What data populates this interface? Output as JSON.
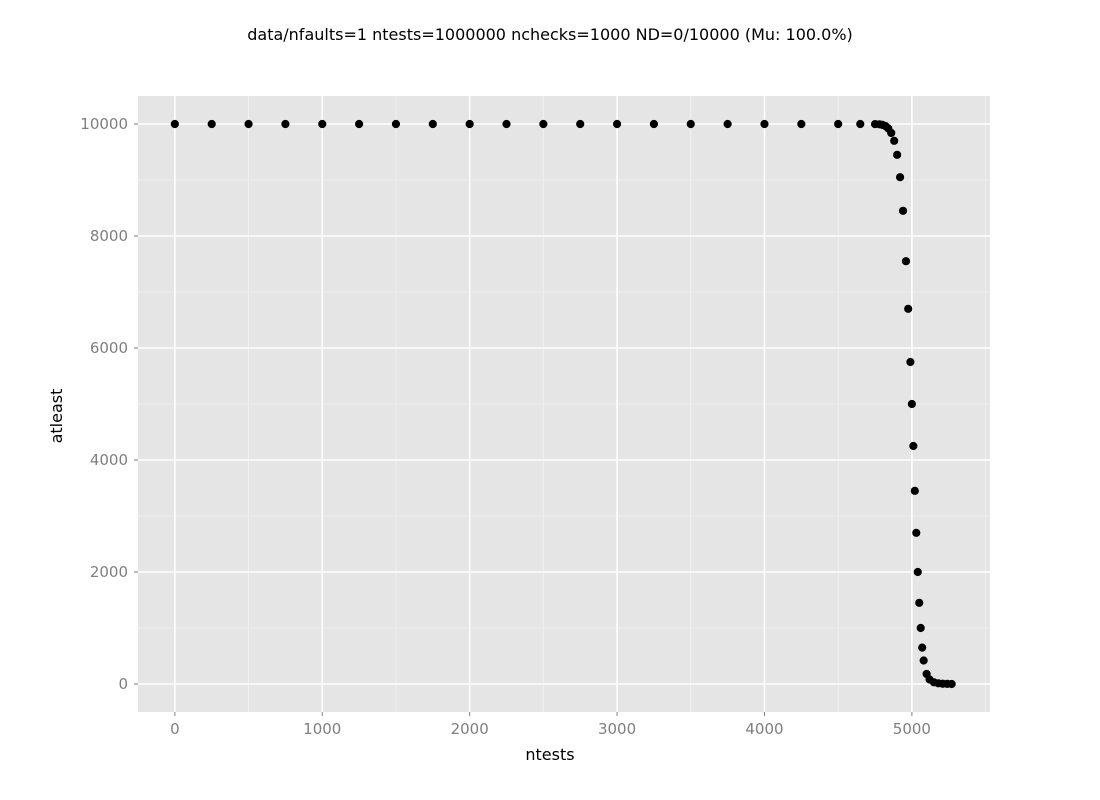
{
  "chart_data": {
    "type": "scatter",
    "title": "data/nfaults=1 ntests=1000000 nchecks=1000  ND=0/10000 (Mu: 100.0%)",
    "xlabel": "ntests",
    "ylabel": "atleast",
    "xlim": [
      -250,
      5530
    ],
    "ylim": [
      -500,
      10500
    ],
    "x_ticks": [
      0,
      1000,
      2000,
      3000,
      4000,
      5000
    ],
    "y_ticks": [
      0,
      2000,
      4000,
      6000,
      8000,
      10000
    ],
    "x_tick_labels": [
      "0",
      "1000",
      "2000",
      "3000",
      "4000",
      "5000"
    ],
    "y_tick_labels": [
      "0",
      "2000",
      "4000",
      "6000",
      "8000",
      "10000"
    ],
    "grid": true,
    "legend": "none",
    "colors": {
      "panel_background": "#e5e5e5",
      "grid_major": "#ffffff",
      "grid_minor": "#f2f2f2",
      "points": "#000000"
    },
    "series": [
      {
        "x": [
          0,
          250,
          500,
          750,
          1000,
          1250,
          1500,
          1750,
          2000,
          2250,
          2500,
          2750,
          3000,
          3250,
          3500,
          3750,
          4000,
          4250,
          4500,
          4650,
          4750,
          4780,
          4800,
          4820,
          4840,
          4860,
          4880,
          4900,
          4920,
          4940,
          4960,
          4975,
          4990,
          5000,
          5010,
          5020,
          5030,
          5040,
          5050,
          5060,
          5070,
          5080,
          5100,
          5120,
          5150,
          5180,
          5210,
          5240,
          5270
        ],
        "y": [
          10000,
          10000,
          10000,
          10000,
          10000,
          10000,
          10000,
          10000,
          10000,
          10000,
          10000,
          10000,
          10000,
          10000,
          10000,
          10000,
          10000,
          10000,
          10000,
          10000,
          9998,
          9994,
          9985,
          9965,
          9920,
          9840,
          9700,
          9450,
          9050,
          8450,
          7550,
          6700,
          5750,
          5000,
          4250,
          3450,
          2700,
          2000,
          1450,
          1000,
          650,
          420,
          180,
          80,
          30,
          12,
          5,
          2,
          0
        ]
      }
    ]
  }
}
